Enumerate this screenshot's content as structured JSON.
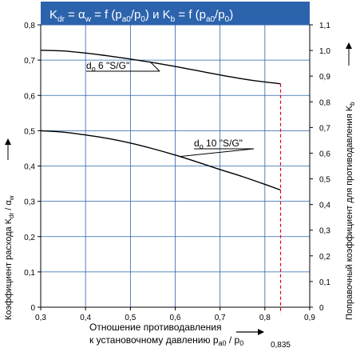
{
  "chart_data": {
    "type": "line",
    "title_parts": {
      "a1": "K",
      "a1_sub": "dr",
      "a2": " = ",
      "a3": "α",
      "a3_sub": "w",
      "a4": " = f (p",
      "a4_sub": "a0",
      "a5": "/p",
      "a5_sub": "0",
      "a6": ") и ",
      "b1": "K",
      "b1_sub": "b",
      "b2": " = f (p",
      "b2_sub": "a0",
      "b3": "/p",
      "b3_sub": "0",
      "b4": ")"
    },
    "ylabel_left": "Коэффициент расхода K",
    "ylabel_left_sub": "dr",
    "ylabel_left_tail": " / α",
    "ylabel_left_tail_sub": "w",
    "ylabel_right": "Поправочный коэффициент для противодавления K",
    "ylabel_right_sub": "b",
    "xlabel_line1": "Отношение противодавления",
    "xlabel_line2": "к установочному давлению p",
    "xlabel_line2_sub": "a0",
    "xlabel_line2_tail": " / p",
    "xlabel_line2_tail_sub": "0",
    "x_ticks": [
      "0,3",
      "0,4",
      "0,5",
      "0,6",
      "0,7",
      "0,8",
      "0,9"
    ],
    "x_tick_values": [
      0.3,
      0.4,
      0.5,
      0.6,
      0.7,
      0.8,
      0.9
    ],
    "y_left_ticks": [
      "0",
      "0,1",
      "0,2",
      "0,3",
      "0,4",
      "0,5",
      "0,6",
      "0,7",
      "0,8"
    ],
    "y_left_tick_values": [
      0,
      0.1,
      0.2,
      0.3,
      0.4,
      0.5,
      0.6,
      0.7,
      0.8
    ],
    "y_right_ticks": [
      "0",
      "0,1",
      "0,2",
      "0,3",
      "0,4",
      "0,5",
      "0,6",
      "0,7",
      "0,8",
      "0,9",
      "1,0",
      "1,1"
    ],
    "y_right_tick_values": [
      0,
      0.1,
      0.2,
      0.3,
      0.4,
      0.5,
      0.6,
      0.7,
      0.8,
      0.9,
      1.0,
      1.1
    ],
    "xlim": [
      0.3,
      0.9
    ],
    "ylim_left": [
      0,
      0.8
    ],
    "ylim_right": [
      0,
      1.1
    ],
    "marker_x": 0.835,
    "marker_label": "0,835",
    "series": [
      {
        "name_main": "d",
        "name_sub": "o",
        "name_rest": " 6 \"S/G\"",
        "x": [
          0.3,
          0.35,
          0.4,
          0.45,
          0.5,
          0.55,
          0.6,
          0.65,
          0.7,
          0.75,
          0.8,
          0.835
        ],
        "y": [
          0.728,
          0.726,
          0.72,
          0.712,
          0.703,
          0.693,
          0.682,
          0.67,
          0.658,
          0.647,
          0.638,
          0.633
        ]
      },
      {
        "name_main": "d",
        "name_sub": "o",
        "name_rest": " 10 \"S/G\"",
        "x": [
          0.3,
          0.35,
          0.4,
          0.45,
          0.5,
          0.55,
          0.6,
          0.65,
          0.7,
          0.75,
          0.8,
          0.835
        ],
        "y": [
          0.5,
          0.496,
          0.488,
          0.478,
          0.465,
          0.449,
          0.431,
          0.411,
          0.39,
          0.37,
          0.348,
          0.332
        ]
      }
    ],
    "colors": {
      "title_bg": "#2c63ad",
      "grid": "#2c63ad",
      "curve": "#000000",
      "marker": "#e0001a"
    },
    "grid": true
  }
}
